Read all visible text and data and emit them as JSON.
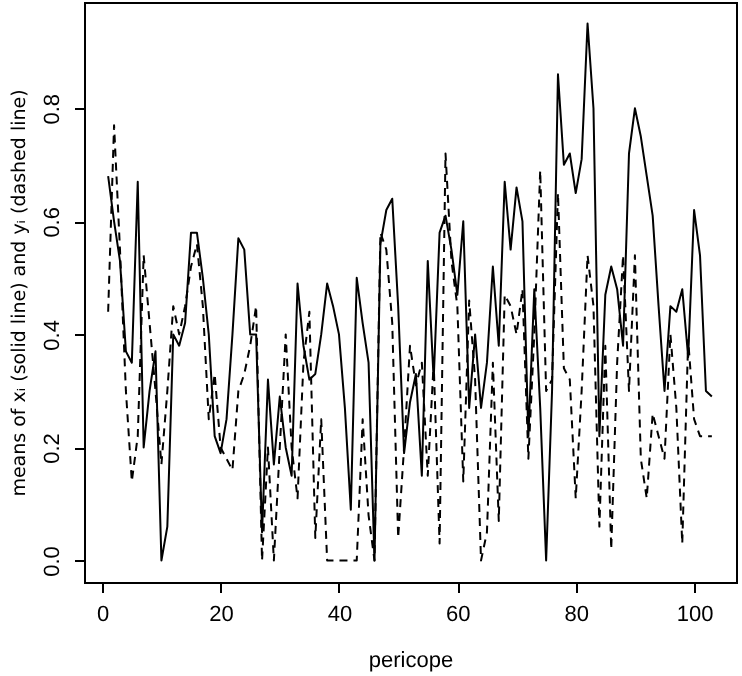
{
  "chart_data": {
    "type": "line",
    "xlabel": "pericope",
    "ylabel": "means of xᵢ (solid line) and yᵢ (dashed line)",
    "x": [
      1,
      2,
      3,
      4,
      5,
      6,
      7,
      8,
      9,
      10,
      11,
      12,
      13,
      14,
      15,
      16,
      17,
      18,
      19,
      20,
      21,
      22,
      23,
      24,
      25,
      26,
      27,
      28,
      29,
      30,
      31,
      32,
      33,
      34,
      35,
      36,
      37,
      38,
      39,
      40,
      41,
      42,
      43,
      44,
      45,
      46,
      47,
      48,
      49,
      50,
      51,
      52,
      53,
      54,
      55,
      56,
      57,
      58,
      59,
      60,
      61,
      62,
      63,
      64,
      65,
      66,
      67,
      68,
      69,
      70,
      71,
      72,
      73,
      74,
      75,
      76,
      77,
      78,
      79,
      80,
      81,
      82,
      83,
      84,
      85,
      86,
      87,
      88,
      89,
      90,
      91,
      92,
      93,
      94,
      95,
      96,
      97,
      98,
      99,
      100,
      101,
      102,
      103
    ],
    "series": [
      {
        "color": "#000000",
        "line_style": "solid",
        "values": [
          0.68,
          0.6,
          0.53,
          0.37,
          0.35,
          0.67,
          0.2,
          0.3,
          0.37,
          0.0,
          0.06,
          0.4,
          0.38,
          0.42,
          0.58,
          0.58,
          0.5,
          0.4,
          0.22,
          0.19,
          0.25,
          0.4,
          0.57,
          0.55,
          0.4,
          0.4,
          0.05,
          0.32,
          0.17,
          0.29,
          0.2,
          0.15,
          0.49,
          0.38,
          0.32,
          0.33,
          0.4,
          0.49,
          0.45,
          0.4,
          0.27,
          0.09,
          0.5,
          0.42,
          0.35,
          0.0,
          0.56,
          0.62,
          0.64,
          0.45,
          0.19,
          0.28,
          0.33,
          0.15,
          0.53,
          0.32,
          0.58,
          0.61,
          0.55,
          0.47,
          0.6,
          0.27,
          0.4,
          0.27,
          0.35,
          0.52,
          0.38,
          0.67,
          0.55,
          0.66,
          0.6,
          0.22,
          0.48,
          0.27,
          0.0,
          0.3,
          0.86,
          0.7,
          0.72,
          0.65,
          0.71,
          0.95,
          0.8,
          0.22,
          0.47,
          0.52,
          0.48,
          0.38,
          0.72,
          0.8,
          0.75,
          0.68,
          0.61,
          0.45,
          0.3,
          0.45,
          0.44,
          0.48,
          0.36,
          0.62,
          0.54,
          0.3,
          0.29
        ]
      },
      {
        "color": "#000000",
        "line_style": "dashed",
        "values": [
          0.44,
          0.77,
          0.55,
          0.3,
          0.14,
          0.22,
          0.54,
          0.42,
          0.3,
          0.17,
          0.3,
          0.45,
          0.4,
          0.45,
          0.52,
          0.56,
          0.45,
          0.25,
          0.33,
          0.2,
          0.18,
          0.16,
          0.3,
          0.33,
          0.38,
          0.45,
          0.0,
          0.2,
          0.0,
          0.2,
          0.4,
          0.2,
          0.11,
          0.35,
          0.44,
          0.04,
          0.25,
          0.0,
          0.0,
          0.0,
          0.0,
          0.0,
          0.0,
          0.25,
          0.08,
          0.0,
          0.58,
          0.55,
          0.42,
          0.04,
          0.2,
          0.38,
          0.31,
          0.35,
          0.15,
          0.35,
          0.03,
          0.72,
          0.53,
          0.45,
          0.14,
          0.46,
          0.32,
          0.0,
          0.05,
          0.35,
          0.07,
          0.47,
          0.45,
          0.4,
          0.48,
          0.18,
          0.4,
          0.69,
          0.3,
          0.32,
          0.65,
          0.34,
          0.32,
          0.11,
          0.3,
          0.54,
          0.45,
          0.06,
          0.38,
          0.02,
          0.35,
          0.54,
          0.3,
          0.54,
          0.18,
          0.11,
          0.26,
          0.22,
          0.18,
          0.4,
          0.27,
          0.03,
          0.39,
          0.25,
          0.22,
          0.22,
          0.22
        ]
      }
    ],
    "xlim": [
      -3.08,
      107.08
    ],
    "xticks": [
      0,
      20,
      40,
      60,
      80,
      100
    ],
    "ylim": [
      -0.038,
      0.988
    ],
    "yticks": [
      {
        "value": 0,
        "label": "0.0"
      },
      {
        "value": 0.2,
        "label": "0.2"
      },
      {
        "value": 0.4,
        "label": "0.4"
      },
      {
        "value": 0.6,
        "label": "0.6"
      },
      {
        "value": 0.8,
        "label": "0.8"
      }
    ],
    "grid": false
  }
}
